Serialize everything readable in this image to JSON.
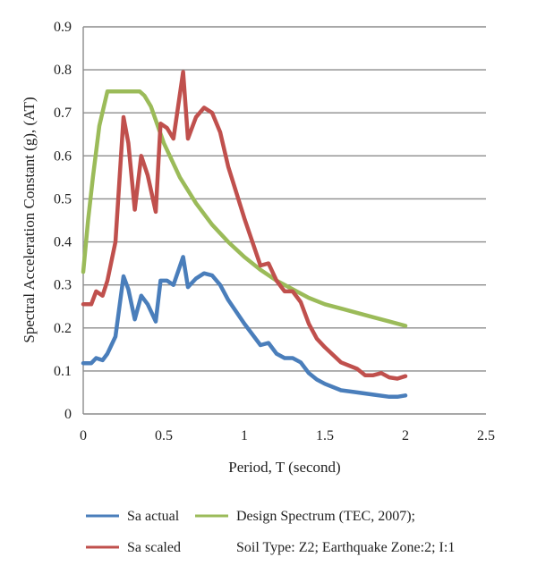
{
  "chart_data": {
    "type": "line",
    "xlabel": "Period, T (second)",
    "ylabel": "Spectral Acceleration Constant (g), (AT)",
    "xlim": [
      0,
      2.5
    ],
    "ylim": [
      0,
      0.9
    ],
    "xticks": [
      "0",
      "0.5",
      "1",
      "1.5",
      "2",
      "2.5"
    ],
    "yticks": [
      "0",
      "0.1",
      "0.2",
      "0.3",
      "0.4",
      "0.5",
      "0.6",
      "0.7",
      "0.8",
      "0.9"
    ],
    "grid": "horizontal",
    "legend_position": "bottom",
    "series": [
      {
        "name": "Sa actual",
        "color": "#4a7ebb",
        "points": [
          [
            0.0,
            0.118
          ],
          [
            0.05,
            0.118
          ],
          [
            0.08,
            0.13
          ],
          [
            0.12,
            0.125
          ],
          [
            0.15,
            0.14
          ],
          [
            0.2,
            0.18
          ],
          [
            0.25,
            0.32
          ],
          [
            0.28,
            0.29
          ],
          [
            0.32,
            0.22
          ],
          [
            0.36,
            0.275
          ],
          [
            0.4,
            0.255
          ],
          [
            0.45,
            0.215
          ],
          [
            0.48,
            0.31
          ],
          [
            0.52,
            0.31
          ],
          [
            0.56,
            0.3
          ],
          [
            0.62,
            0.365
          ],
          [
            0.65,
            0.295
          ],
          [
            0.7,
            0.315
          ],
          [
            0.75,
            0.327
          ],
          [
            0.8,
            0.322
          ],
          [
            0.85,
            0.3
          ],
          [
            0.9,
            0.265
          ],
          [
            1.0,
            0.21
          ],
          [
            1.1,
            0.16
          ],
          [
            1.15,
            0.165
          ],
          [
            1.2,
            0.14
          ],
          [
            1.25,
            0.13
          ],
          [
            1.3,
            0.13
          ],
          [
            1.35,
            0.12
          ],
          [
            1.4,
            0.095
          ],
          [
            1.45,
            0.08
          ],
          [
            1.5,
            0.07
          ],
          [
            1.6,
            0.055
          ],
          [
            1.7,
            0.05
          ],
          [
            1.8,
            0.045
          ],
          [
            1.9,
            0.04
          ],
          [
            1.95,
            0.04
          ],
          [
            2.0,
            0.043
          ]
        ]
      },
      {
        "name": "Sa scaled",
        "color": "#c0504d",
        "points": [
          [
            0.0,
            0.255
          ],
          [
            0.05,
            0.255
          ],
          [
            0.08,
            0.285
          ],
          [
            0.12,
            0.275
          ],
          [
            0.15,
            0.31
          ],
          [
            0.2,
            0.4
          ],
          [
            0.25,
            0.69
          ],
          [
            0.28,
            0.63
          ],
          [
            0.32,
            0.475
          ],
          [
            0.36,
            0.6
          ],
          [
            0.4,
            0.555
          ],
          [
            0.45,
            0.47
          ],
          [
            0.48,
            0.675
          ],
          [
            0.52,
            0.665
          ],
          [
            0.56,
            0.64
          ],
          [
            0.62,
            0.795
          ],
          [
            0.65,
            0.64
          ],
          [
            0.7,
            0.69
          ],
          [
            0.75,
            0.712
          ],
          [
            0.8,
            0.7
          ],
          [
            0.85,
            0.655
          ],
          [
            0.9,
            0.575
          ],
          [
            1.0,
            0.455
          ],
          [
            1.1,
            0.345
          ],
          [
            1.15,
            0.35
          ],
          [
            1.2,
            0.31
          ],
          [
            1.25,
            0.285
          ],
          [
            1.3,
            0.285
          ],
          [
            1.35,
            0.26
          ],
          [
            1.4,
            0.21
          ],
          [
            1.45,
            0.175
          ],
          [
            1.5,
            0.155
          ],
          [
            1.6,
            0.12
          ],
          [
            1.7,
            0.105
          ],
          [
            1.75,
            0.09
          ],
          [
            1.8,
            0.09
          ],
          [
            1.85,
            0.095
          ],
          [
            1.9,
            0.085
          ],
          [
            1.95,
            0.082
          ],
          [
            2.0,
            0.088
          ]
        ]
      },
      {
        "name": "Design Spectrum (TEC, 2007);",
        "color": "#9bbb59",
        "points": [
          [
            0.0,
            0.33
          ],
          [
            0.03,
            0.45
          ],
          [
            0.06,
            0.55
          ],
          [
            0.1,
            0.67
          ],
          [
            0.15,
            0.75
          ],
          [
            0.2,
            0.75
          ],
          [
            0.25,
            0.75
          ],
          [
            0.3,
            0.75
          ],
          [
            0.35,
            0.75
          ],
          [
            0.38,
            0.74
          ],
          [
            0.42,
            0.715
          ],
          [
            0.5,
            0.63
          ],
          [
            0.6,
            0.55
          ],
          [
            0.7,
            0.49
          ],
          [
            0.8,
            0.44
          ],
          [
            0.9,
            0.4
          ],
          [
            1.0,
            0.365
          ],
          [
            1.1,
            0.335
          ],
          [
            1.2,
            0.31
          ],
          [
            1.3,
            0.29
          ],
          [
            1.4,
            0.27
          ],
          [
            1.5,
            0.255
          ],
          [
            1.6,
            0.245
          ],
          [
            1.7,
            0.235
          ],
          [
            1.8,
            0.225
          ],
          [
            1.9,
            0.215
          ],
          [
            2.0,
            0.205
          ]
        ]
      }
    ],
    "legend_note": "Soil Type: Z2; Earthquake Zone:2; I:1"
  }
}
